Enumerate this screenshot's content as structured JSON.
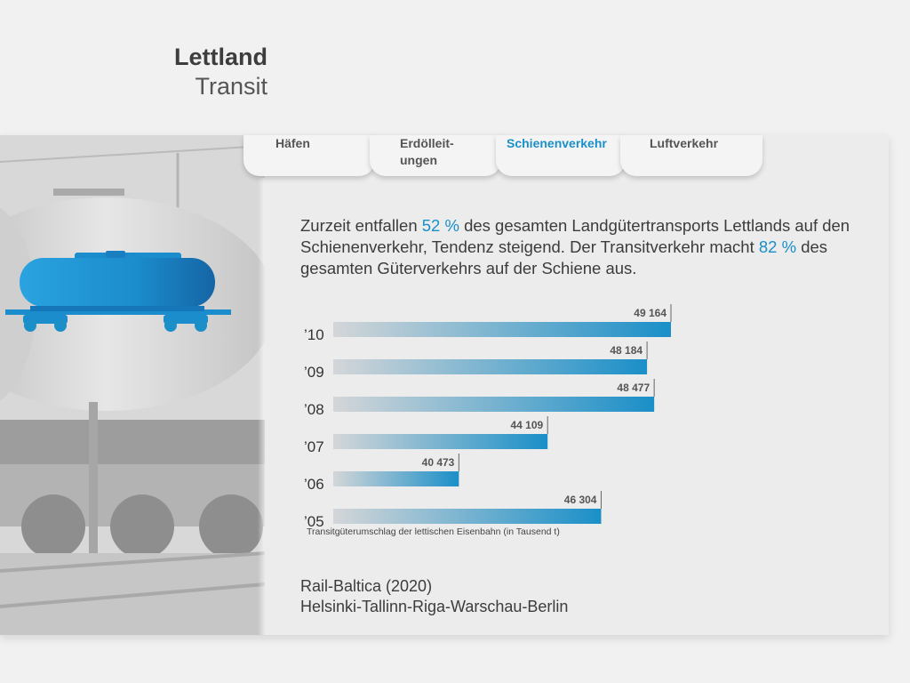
{
  "header": {
    "title": "Lettland",
    "subtitle": "Transit"
  },
  "tabs": [
    {
      "label": "Häfen",
      "active": false
    },
    {
      "label": "Erdölleit-\nungen",
      "active": false
    },
    {
      "label": "Schienenverkehr",
      "active": true
    },
    {
      "label": "Luftverkehr",
      "active": false
    }
  ],
  "lead": {
    "part1": "Zurzeit entfallen ",
    "value1": "52 %",
    "part2": " des gesamten Landgütertransports Lettlands auf den Schienenverkehr, Tendenz steigend. Der Transitverkehr macht ",
    "value2": "82 %",
    "part3": " des gesamten Güterverkehrs auf der Schiene aus."
  },
  "chart_data": {
    "type": "bar",
    "orientation": "horizontal",
    "categories": [
      "’10",
      "’09",
      "’08",
      "’07",
      "’06",
      "’05"
    ],
    "values": [
      49164,
      48184,
      48477,
      44109,
      40473,
      46304
    ],
    "value_labels": [
      "49 164",
      "48 184",
      "48 477",
      "44 109",
      "40 473",
      "46 304"
    ],
    "caption": "Transitgüterumschlag der lettischen Eisenbahn (in Tausend t)",
    "xlim": [
      37000,
      49164
    ],
    "colors": {
      "bar_start": "#d4d6d8",
      "bar_end": "#1a8fc8"
    }
  },
  "footer": {
    "line1": "Rail-Baltica (2020)",
    "line2": "Helsinki-Tallinn-Riga-Warschau-Berlin"
  },
  "icons": {
    "tank-car": "rail-tank-car-icon"
  }
}
